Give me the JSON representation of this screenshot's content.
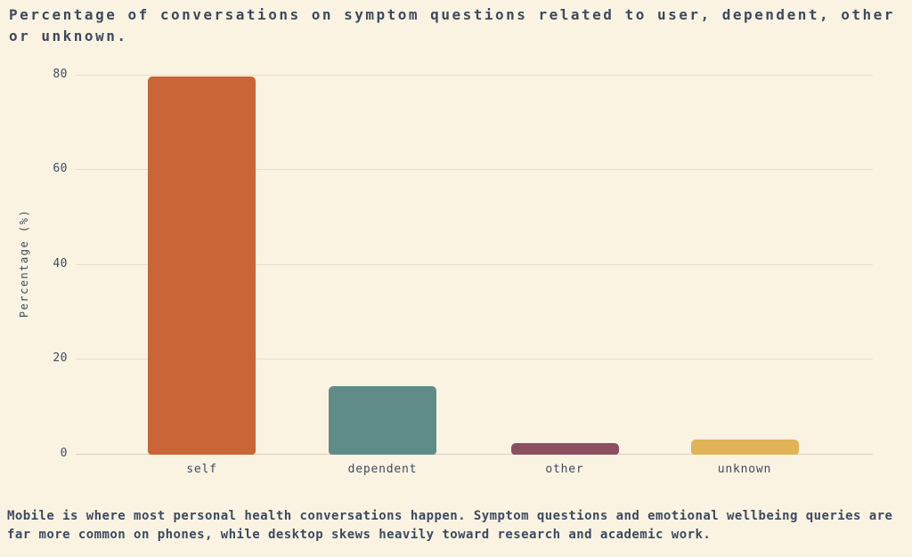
{
  "window": {
    "background": "#faf3e2",
    "text_color": "#3c4a5f"
  },
  "title": {
    "text": "Percentage of conversations on symptom questions related to user, dependent, other or unknown."
  },
  "caption": {
    "text": "Mobile is where most personal health conversations happen. Symptom questions and emotional wellbeing queries are far more common on phones, while desktop skews heavily toward research and academic work."
  },
  "chart_data": {
    "type": "bar",
    "title": "Percentage of conversations on symptom questions related to user, dependent, other or unknown.",
    "categories": [
      "self",
      "dependent",
      "other",
      "unknown"
    ],
    "values": [
      79.8,
      14.5,
      2.4,
      3.1
    ],
    "bar_colors": [
      "#c96536",
      "#5f8c89",
      "#8c4f62",
      "#e0b356"
    ],
    "xlabel": "",
    "ylabel": "Percentage (%)",
    "ylim": [
      0,
      82.4
    ],
    "yticks": [
      0,
      20,
      40,
      60,
      80
    ],
    "grid": true,
    "gridline_color": "#e6deca",
    "legend": "none"
  }
}
